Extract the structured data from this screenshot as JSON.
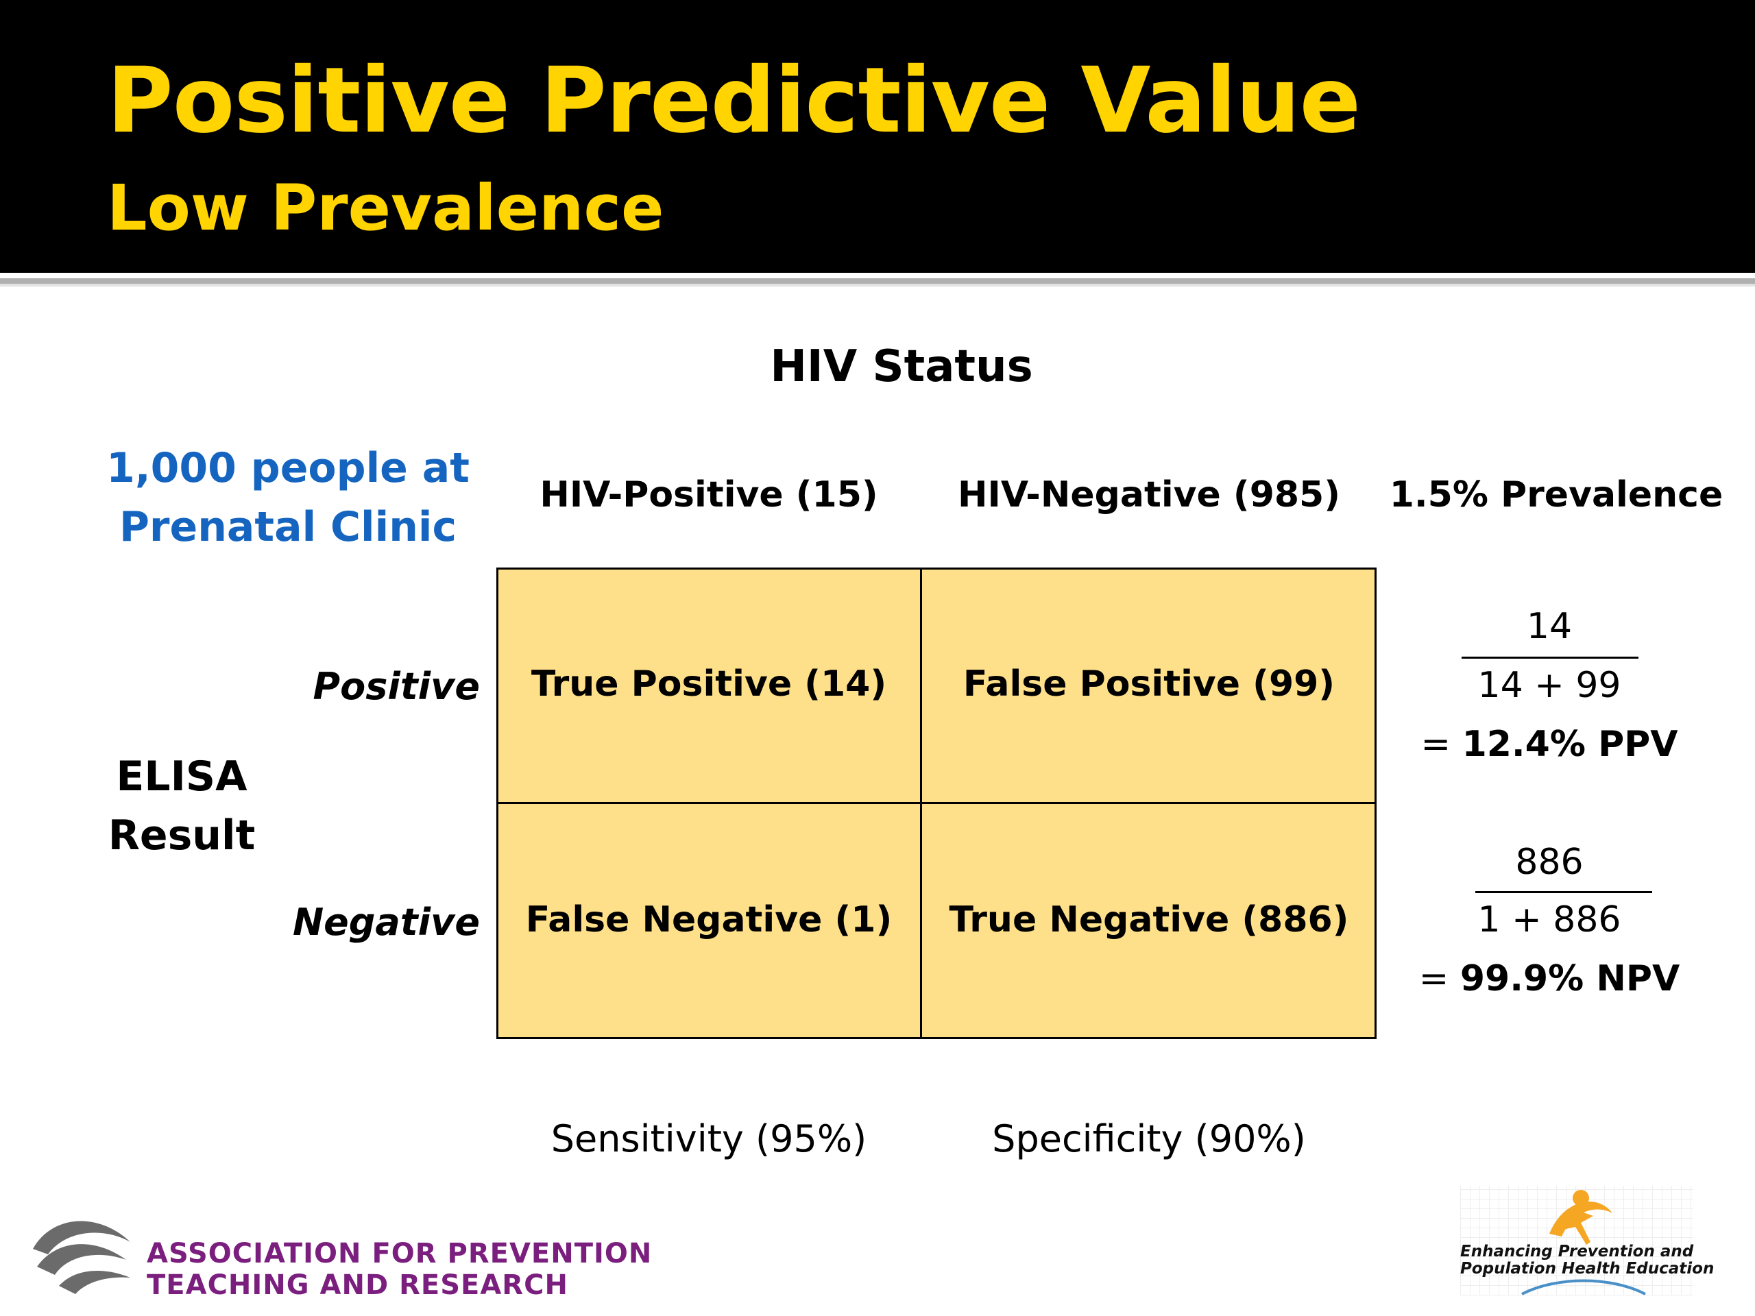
{
  "slide": {
    "title": "Positive Predictive Value",
    "subtitle": "Low Prevalence",
    "hiv_status": "HIV Status",
    "clinic_label": "1,000 people at Prenatal Clinic",
    "columns": {
      "hiv_positive": "HIV-Positive (15)",
      "hiv_negative": "HIV-Negative (985)",
      "prevalence": "1.5% Prevalence"
    },
    "rows": {
      "positive": "Positive",
      "negative": "Negative",
      "elisa": "ELISA Result"
    },
    "cells": {
      "true_positive": "True Positive (14)",
      "false_positive": "False Positive (99)",
      "false_negative": "False Negative (1)",
      "true_negative": "True Negative (886)"
    },
    "ppv": {
      "numerator": "14",
      "denominator": "14 + 99",
      "eq": "= ",
      "result": "12.4% PPV"
    },
    "npv": {
      "numerator": "886",
      "denominator": "1 + 886",
      "eq": "= ",
      "result": "99.9% NPV"
    },
    "sensitivity": "Sensitivity (95%)",
    "specificity": "Specificity (90%)"
  },
  "logos": {
    "aptr_line1": "ASSOCIATION FOR PREVENTION",
    "aptr_line2": "TEACHING AND RESEARCH",
    "epphe_line1": "Enhancing Prevention and",
    "epphe_line2": "Population Health Education"
  },
  "colors": {
    "title": "#FFD400",
    "clinic_label": "#1565C0",
    "table_fill": "#FFE08A",
    "aptr_text": "#7B1F7F"
  }
}
